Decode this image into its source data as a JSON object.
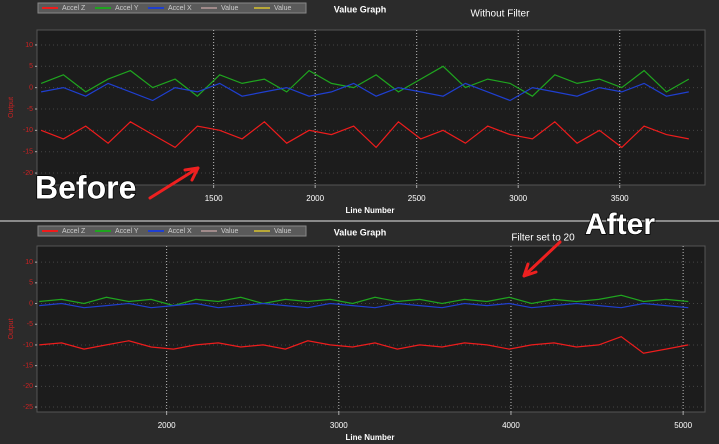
{
  "chart_data": [
    {
      "type": "line",
      "title": "Value Graph",
      "xlabel": "Line Number",
      "ylabel": "Output",
      "annotation": "Without Filter",
      "callout": "Before",
      "x": [
        650,
        760,
        870,
        980,
        1090,
        1200,
        1310,
        1420,
        1530,
        1640,
        1750,
        1860,
        1970,
        2080,
        2190,
        2300,
        2410,
        2520,
        2630,
        2740,
        2850,
        2960,
        3070,
        3180,
        3290,
        3400,
        3510,
        3620,
        3730,
        3840
      ],
      "series": [
        {
          "name": "Accel Z",
          "color": "#ee1c1c",
          "values": [
            -10,
            -12,
            -9,
            -13,
            -8,
            -11,
            -14,
            -9,
            -10,
            -12,
            -8,
            -13,
            -10,
            -11,
            -9,
            -14,
            -8,
            -12,
            -10,
            -13,
            -9,
            -11,
            -12,
            -8,
            -13,
            -10,
            -14,
            -9,
            -11,
            -12
          ]
        },
        {
          "name": "Accel Y",
          "color": "#1fa51f",
          "values": [
            1,
            3,
            -1,
            2,
            4,
            0,
            2,
            -2,
            3,
            1,
            2,
            -1,
            4,
            1,
            0,
            3,
            -1,
            2,
            5,
            0,
            2,
            1,
            -2,
            3,
            1,
            2,
            0,
            4,
            -1,
            2
          ]
        },
        {
          "name": "Accel X",
          "color": "#1f3fd0",
          "values": [
            -1,
            0,
            -2,
            1,
            -1,
            -3,
            0,
            -1,
            1,
            -2,
            -1,
            0,
            -2,
            -1,
            1,
            -2,
            0,
            -1,
            -2,
            1,
            -1,
            -3,
            0,
            -1,
            -2,
            0,
            -1,
            1,
            -2,
            -1
          ]
        },
        {
          "name": "Value",
          "color": "#a08a8a",
          "values": [
            null,
            null,
            null,
            null,
            null,
            null,
            null,
            null,
            null,
            null,
            null,
            null,
            null,
            null,
            null,
            null,
            null,
            null,
            null,
            null,
            null,
            null,
            null,
            null,
            null,
            null,
            null,
            null,
            null,
            null
          ]
        },
        {
          "name": "Value",
          "color": "#b8a838",
          "values": [
            null,
            null,
            null,
            null,
            null,
            null,
            null,
            null,
            null,
            null,
            null,
            null,
            null,
            null,
            null,
            null,
            null,
            null,
            null,
            null,
            null,
            null,
            null,
            null,
            null,
            null,
            null,
            null,
            null,
            null
          ]
        }
      ],
      "xlim": [
        630,
        3920
      ],
      "xticks": [
        1500,
        2000,
        2500,
        3000,
        3500
      ],
      "ylim": [
        -22.8,
        13.5
      ],
      "yticks": [
        10,
        5,
        0,
        -5,
        -10,
        -15,
        -20
      ],
      "grid": true
    },
    {
      "type": "line",
      "title": "Value Graph",
      "xlabel": "Line Number",
      "ylabel": "Output",
      "annotation": "Filter set to 20",
      "callout": "After",
      "x": [
        1260,
        1390,
        1520,
        1650,
        1780,
        1910,
        2040,
        2170,
        2300,
        2430,
        2560,
        2690,
        2820,
        2950,
        3080,
        3210,
        3340,
        3470,
        3600,
        3730,
        3860,
        3990,
        4120,
        4250,
        4380,
        4510,
        4640,
        4770,
        4900,
        5030
      ],
      "series": [
        {
          "name": "Accel Z",
          "color": "#ee1c1c",
          "values": [
            -10,
            -9.5,
            -11,
            -10,
            -9,
            -10.5,
            -11,
            -10,
            -9.5,
            -10.5,
            -10,
            -11,
            -9,
            -10,
            -10.5,
            -9.5,
            -11,
            -10,
            -10.5,
            -9.5,
            -10,
            -11,
            -10,
            -9.5,
            -10.5,
            -10,
            -8,
            -12,
            -11,
            -10
          ]
        },
        {
          "name": "Accel Y",
          "color": "#1fa51f",
          "values": [
            0.5,
            1,
            0,
            1.5,
            0.5,
            1,
            -0.5,
            1,
            0.5,
            1.5,
            0,
            1,
            0.5,
            1,
            0,
            1.5,
            0.5,
            1,
            0,
            1,
            0.5,
            1.5,
            0,
            1,
            0.5,
            1,
            2,
            0.5,
            1,
            0.5
          ]
        },
        {
          "name": "Accel X",
          "color": "#1f3fd0",
          "values": [
            -0.5,
            0,
            -1,
            -0.5,
            0,
            -1,
            -0.5,
            0,
            -1,
            -0.5,
            0,
            -0.5,
            -1,
            0,
            -0.5,
            -1,
            0,
            -0.5,
            -1,
            0,
            -0.5,
            0,
            -1,
            -0.5,
            0,
            -0.5,
            -1,
            0,
            -0.5,
            -1
          ]
        },
        {
          "name": "Value",
          "color": "#a08a8a",
          "values": [
            null,
            null,
            null,
            null,
            null,
            null,
            null,
            null,
            null,
            null,
            null,
            null,
            null,
            null,
            null,
            null,
            null,
            null,
            null,
            null,
            null,
            null,
            null,
            null,
            null,
            null,
            null,
            null,
            null,
            null
          ]
        },
        {
          "name": "Value",
          "color": "#b8a838",
          "values": [
            null,
            null,
            null,
            null,
            null,
            null,
            null,
            null,
            null,
            null,
            null,
            null,
            null,
            null,
            null,
            null,
            null,
            null,
            null,
            null,
            null,
            null,
            null,
            null,
            null,
            null,
            null,
            null,
            null,
            null
          ]
        }
      ],
      "xlim": [
        1247,
        5127
      ],
      "xticks": [
        2000,
        3000,
        4000,
        5000
      ],
      "ylim": [
        -26.2,
        13.9
      ],
      "yticks": [
        10,
        5,
        0,
        -5,
        -10,
        -15,
        -20,
        -25
      ],
      "grid": true
    }
  ]
}
